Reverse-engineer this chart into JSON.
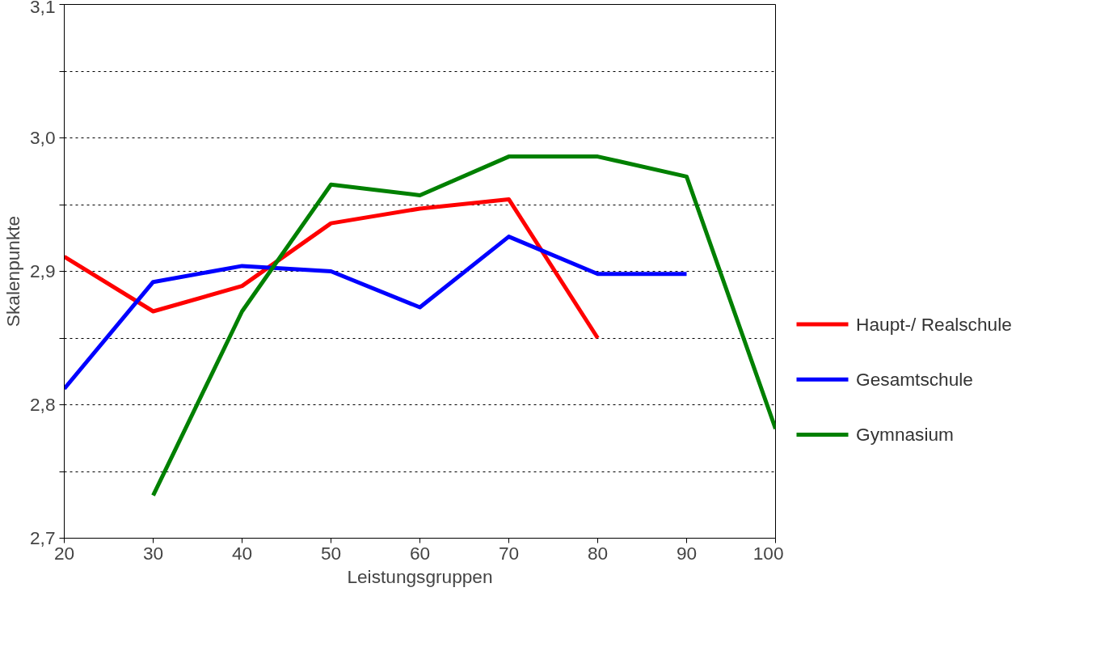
{
  "chart_data": {
    "type": "line",
    "xlabel": "Leistungsgruppen",
    "ylabel": "Skalenpunkte",
    "xlim": [
      20,
      100
    ],
    "xticks": [
      20,
      30,
      40,
      50,
      60,
      70,
      80,
      90,
      100
    ],
    "ylim": [
      2.7,
      3.1
    ],
    "yticks": [
      {
        "value": 2.7,
        "label": "2,7"
      },
      {
        "value": 2.75,
        "label": null
      },
      {
        "value": 2.8,
        "label": "2,8"
      },
      {
        "value": 2.85,
        "label": null
      },
      {
        "value": 2.9,
        "label": "2,9"
      },
      {
        "value": 2.95,
        "label": null
      },
      {
        "value": 3.0,
        "label": "3,0"
      },
      {
        "value": 3.05,
        "label": null
      },
      {
        "value": 3.1,
        "label": "3,1"
      }
    ],
    "grid": "y",
    "legend": "right",
    "line_style": "solid",
    "marker": "none",
    "series": [
      {
        "name": "Haupt-/ Realschule",
        "color": "#ff0000",
        "x": [
          20,
          30,
          40,
          50,
          60,
          70,
          80
        ],
        "values": [
          2.911,
          2.87,
          2.889,
          2.936,
          2.947,
          2.954,
          2.85
        ]
      },
      {
        "name": "Gesamtschule",
        "color": "#0000ff",
        "x": [
          20,
          30,
          40,
          50,
          60,
          70,
          80,
          90
        ],
        "values": [
          2.812,
          2.892,
          2.904,
          2.9,
          2.873,
          2.926,
          2.898,
          2.898
        ]
      },
      {
        "name": "Gymnasium",
        "color": "#008000",
        "x": [
          30,
          40,
          50,
          60,
          70,
          80,
          90,
          100
        ],
        "values": [
          2.732,
          2.87,
          2.965,
          2.957,
          2.986,
          2.986,
          2.971,
          2.782
        ]
      }
    ]
  }
}
